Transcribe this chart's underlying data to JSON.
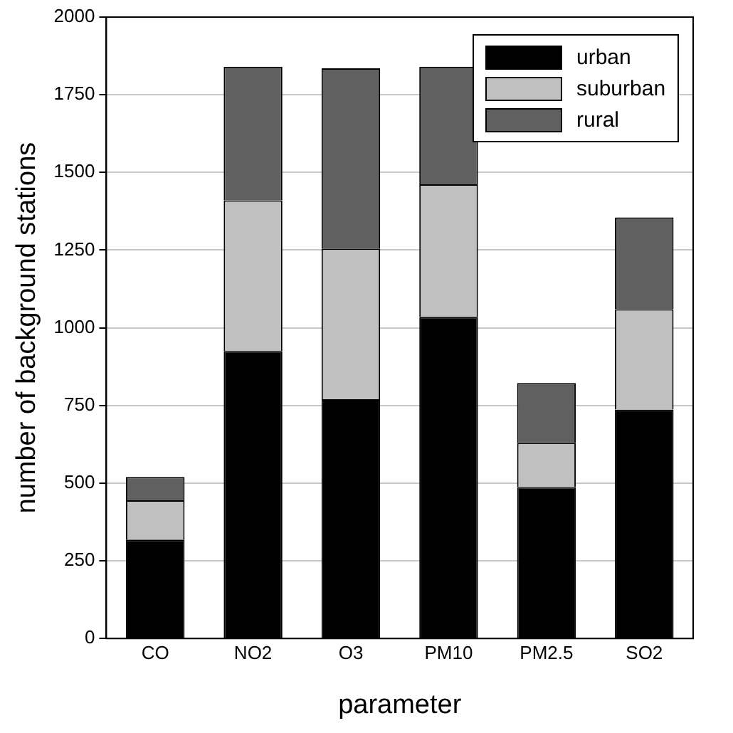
{
  "chart_data": {
    "type": "bar",
    "stacked": true,
    "xlabel": "parameter",
    "ylabel": "number of background stations",
    "categories": [
      "CO",
      "NO2",
      "O3",
      "PM10",
      "PM2.5",
      "SO2"
    ],
    "series": [
      {
        "name": "urban",
        "color": "#000000",
        "values": [
          318,
          925,
          770,
          1035,
          487,
          737
        ]
      },
      {
        "name": "suburban",
        "color": "#c0c0c0",
        "values": [
          127,
          485,
          485,
          427,
          143,
          323
        ]
      },
      {
        "name": "rural",
        "color": "#606060",
        "values": [
          75,
          430,
          580,
          378,
          192,
          295
        ]
      }
    ],
    "ylim": [
      0,
      2000
    ],
    "yticks": [
      0,
      250,
      500,
      750,
      1000,
      1250,
      1500,
      1750,
      2000
    ],
    "grid": "y",
    "legend": "top right"
  }
}
